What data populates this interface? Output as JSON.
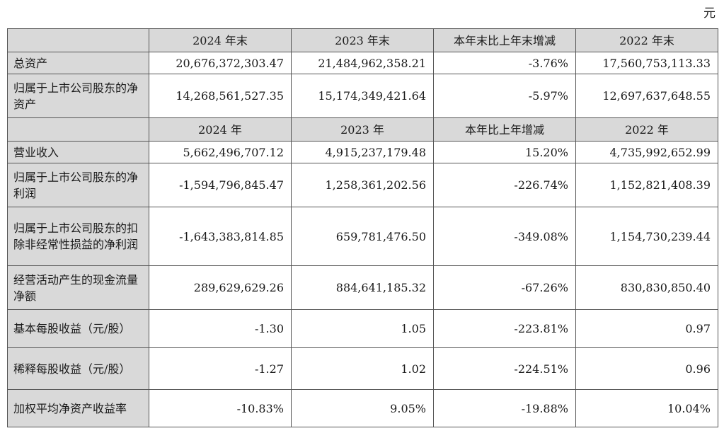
{
  "unit": "元",
  "balance_header": [
    "",
    "2024 年末",
    "2023 年末",
    "本年末比上年末增减",
    "2022 年末"
  ],
  "balance_rows": [
    {
      "label": "总资产",
      "values": [
        "20,676,372,303.47",
        "21,484,962,358.21",
        "-3.76%",
        "17,560,753,113.33"
      ]
    },
    {
      "label": "归属于上市公司股东的净资产",
      "values": [
        "14,268,561,527.35",
        "15,174,349,421.64",
        "-5.97%",
        "12,697,637,648.55"
      ]
    }
  ],
  "income_header": [
    "",
    "2024 年",
    "2023 年",
    "本年比上年增减",
    "2022 年"
  ],
  "income_rows": [
    {
      "label": "营业收入",
      "values": [
        "5,662,496,707.12",
        "4,915,237,179.48",
        "15.20%",
        "4,735,992,652.99"
      ]
    },
    {
      "label": "归属于上市公司股东的净利润",
      "values": [
        "-1,594,796,845.47",
        "1,258,361,202.56",
        "-226.74%",
        "1,152,821,408.39"
      ]
    },
    {
      "label": "归属于上市公司股东的扣除非经常性损益的净利润",
      "values": [
        "-1,643,383,814.85",
        "659,781,476.50",
        "-349.08%",
        "1,154,730,239.44"
      ]
    },
    {
      "label": "经营活动产生的现金流量净额",
      "values": [
        "289,629,629.26",
        "884,641,185.32",
        "-67.26%",
        "830,830,850.40"
      ]
    },
    {
      "label": "基本每股收益（元/股）",
      "values": [
        "-1.30",
        "1.05",
        "-223.81%",
        "0.97"
      ]
    },
    {
      "label": "稀释每股收益（元/股）",
      "values": [
        "-1.27",
        "1.02",
        "-224.51%",
        "0.96"
      ]
    },
    {
      "label": "加权平均净资产收益率",
      "values": [
        "-10.83%",
        "9.05%",
        "-19.88%",
        "10.04%"
      ]
    }
  ]
}
